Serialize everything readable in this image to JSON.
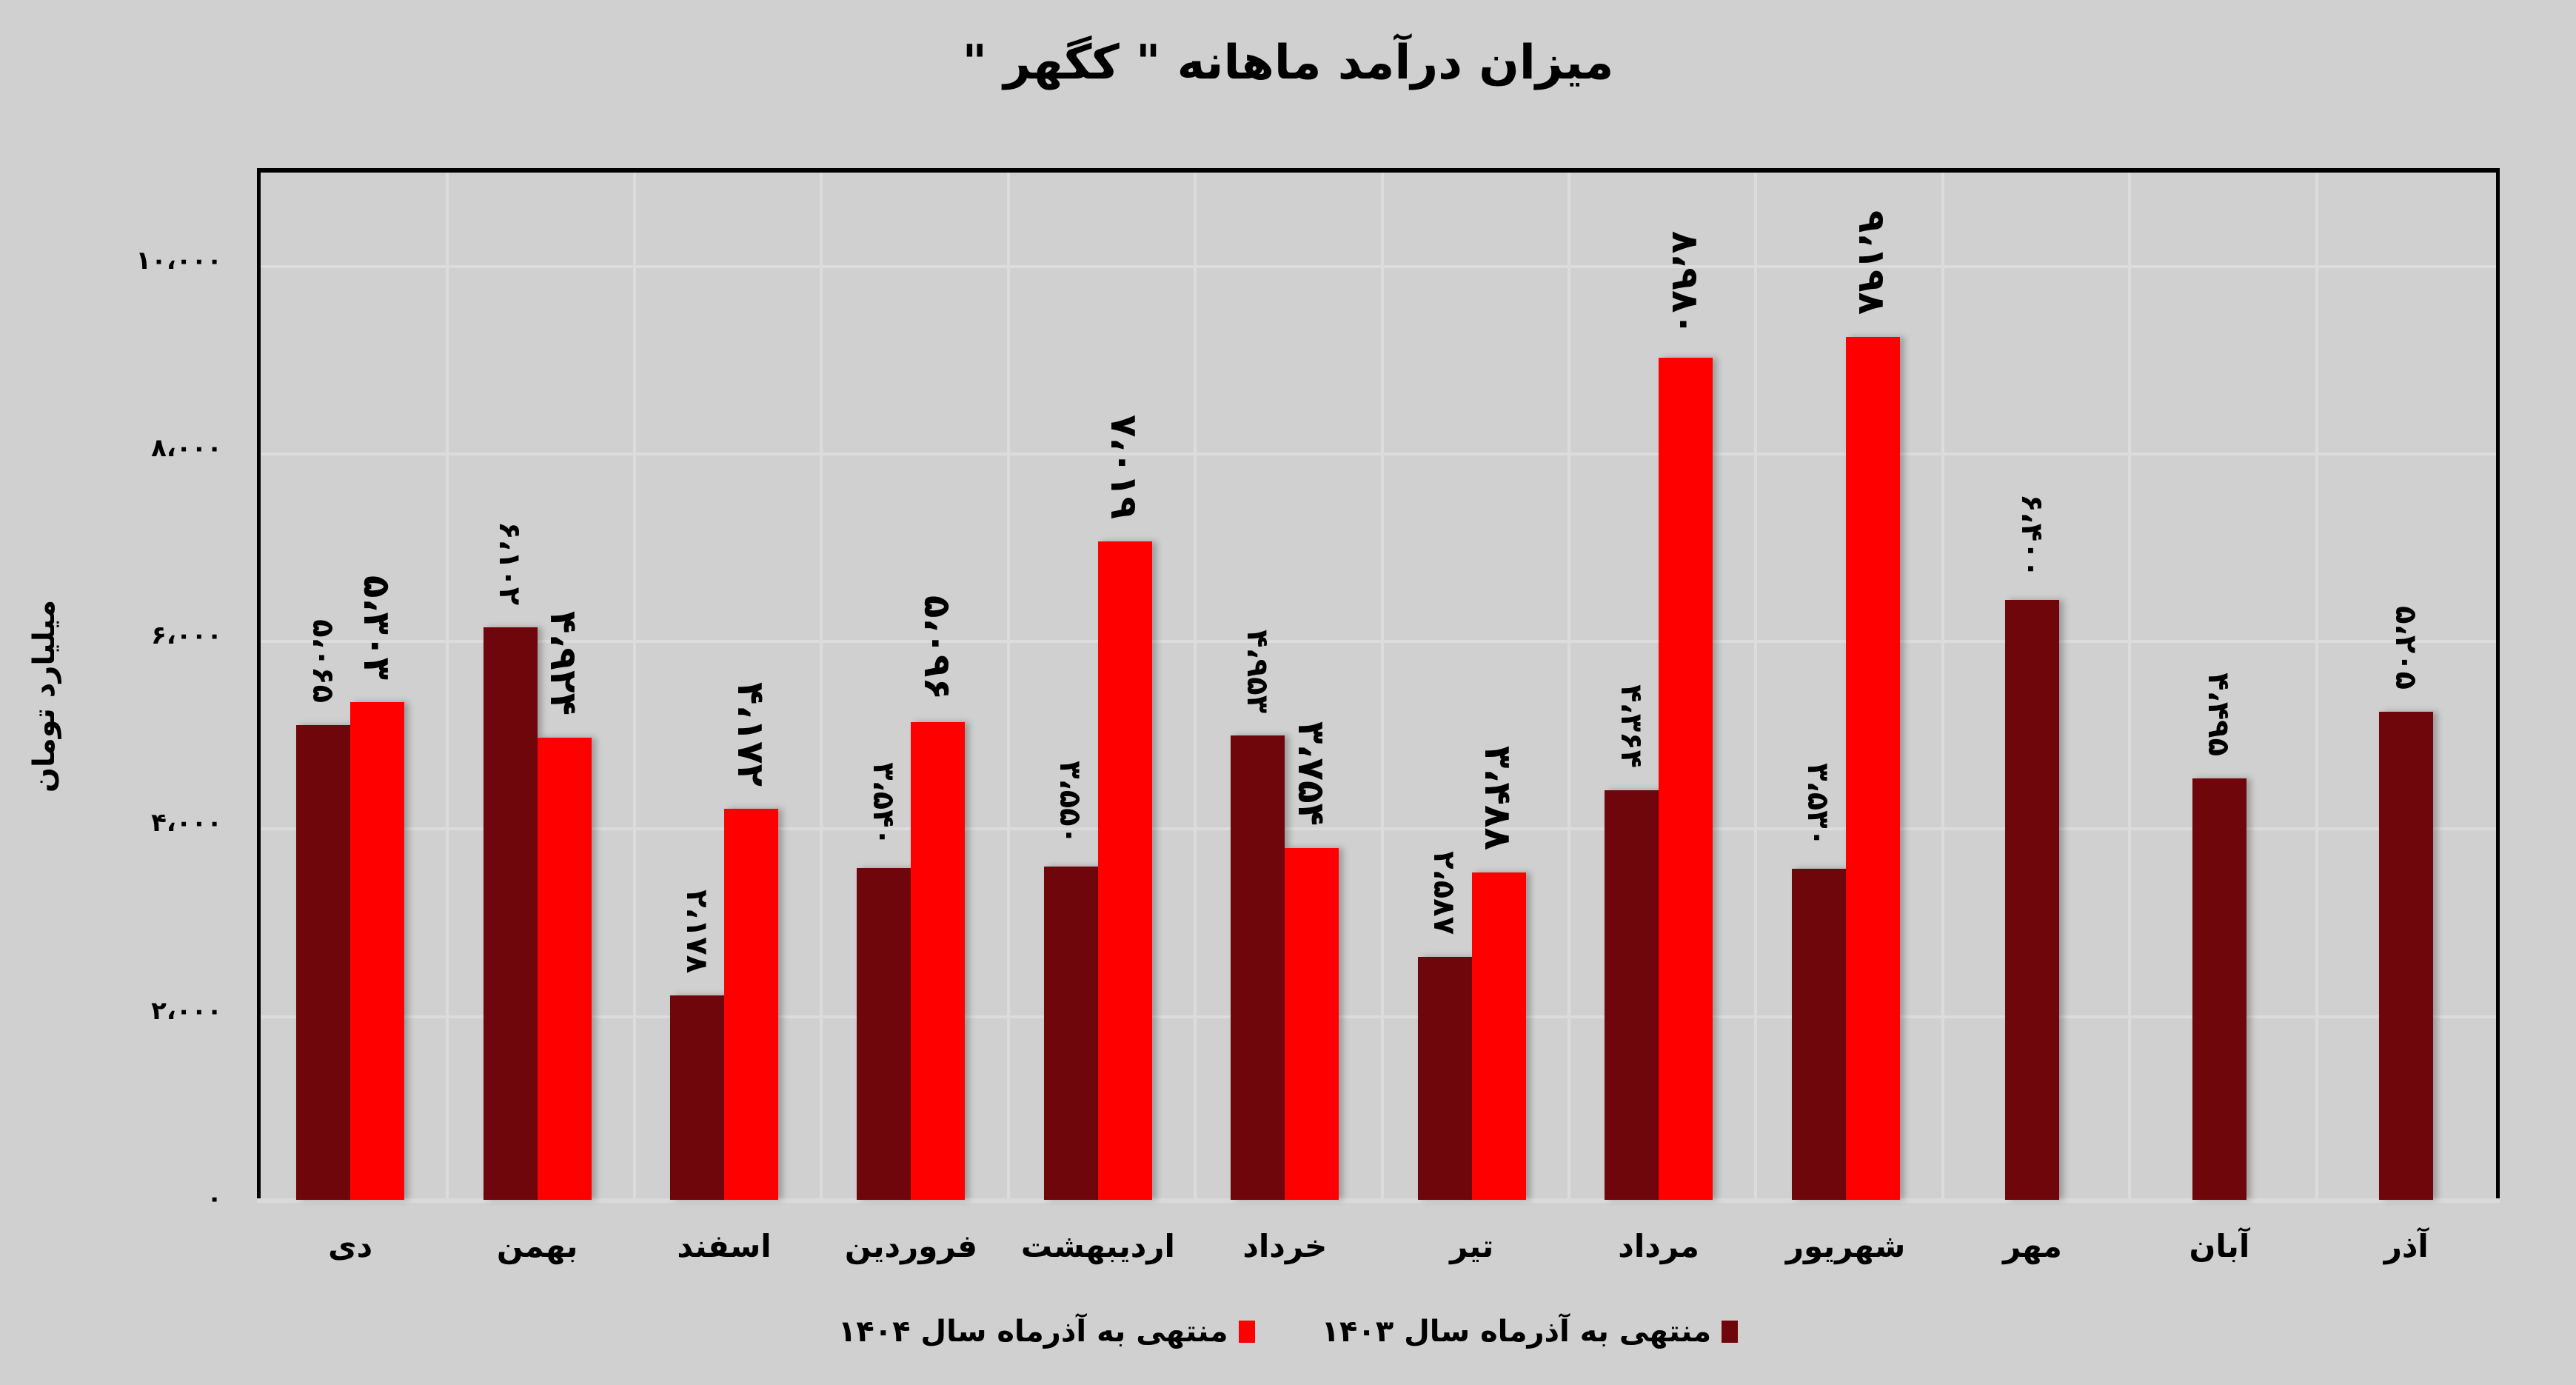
{
  "chart_data": {
    "type": "bar",
    "title": "میزان درآمد ماهانه \" کگهر \"",
    "ylabel": "میلیارد تومان",
    "xlabel": "",
    "ylim": [
      0,
      11000
    ],
    "yticks": [
      0,
      2000,
      4000,
      6000,
      8000,
      10000
    ],
    "ytick_labels": [
      "۰",
      "۲،۰۰۰",
      "۴،۰۰۰",
      "۶،۰۰۰",
      "۸،۰۰۰",
      "۱۰،۰۰۰"
    ],
    "grid": true,
    "legend_position": "bottom",
    "categories": [
      "دی",
      "بهمن",
      "اسفند",
      "فروردین",
      "اردیبهشت",
      "خرداد",
      "تیر",
      "مرداد",
      "شهریور",
      "مهر",
      "آبان",
      "آذر"
    ],
    "series": [
      {
        "name": "منتهی به آذرماه سال ۱۴۰۳",
        "color": "#6e060b",
        "values": [
          5065,
          6102,
          2178,
          3540,
          3550,
          4953,
          2587,
          4364,
          3530,
          6400,
          4495,
          5205
        ],
        "labels": [
          "۵،۰۶۵",
          "۶،۱۰۲",
          "۲،۱۷۸",
          "۳،۵۴۰",
          "۳،۵۵۰",
          "۴،۹۵۳",
          "۲،۵۸۷",
          "۴،۳۶۴",
          "۳،۵۳۰",
          "۶،۴۰۰",
          "۴،۴۹۵",
          "۵،۲۰۵"
        ]
      },
      {
        "name": "منتهی به آذرماه سال ۱۴۰۴",
        "color": "#ff0000",
        "values": [
          5303,
          4924,
          4172,
          5096,
          7019,
          3754,
          3488,
          8980,
          9198,
          null,
          null,
          null
        ],
        "labels": [
          "۵،۳۰۳",
          "۴،۹۲۴",
          "۴،۱۷۲",
          "۵،۰۹۶",
          "۷،۰۱۹",
          "۳،۷۵۴",
          "۳،۴۸۸",
          "۸،۹۸۰",
          "۹،۱۹۸",
          "",
          "",
          ""
        ]
      }
    ]
  },
  "colors": {
    "background": "#d0d0d0",
    "gridline": "#dcdcdc",
    "frame": "#000000"
  }
}
